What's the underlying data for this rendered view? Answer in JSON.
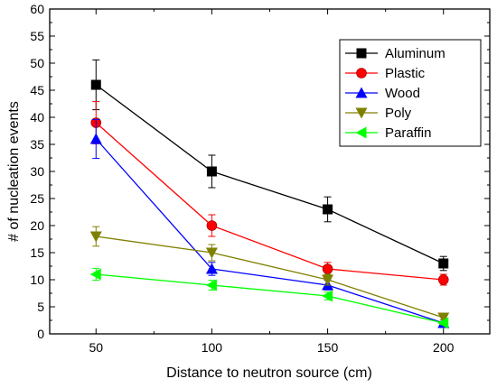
{
  "chart_data": {
    "type": "line",
    "xlabel": "Distance to neutron source (cm)",
    "ylabel": "# of nucleation events",
    "x": [
      50,
      100,
      150,
      200
    ],
    "xlim": [
      30,
      220
    ],
    "ylim": [
      0,
      60
    ],
    "xticks": [
      50,
      100,
      150,
      200
    ],
    "yticks": [
      0,
      5,
      10,
      15,
      20,
      25,
      30,
      35,
      40,
      45,
      50,
      55,
      60
    ],
    "grid": false,
    "legend_position": "top-right",
    "series": [
      {
        "name": "Aluminum",
        "color": "#000000",
        "marker": "square",
        "values": [
          46,
          30,
          23,
          13
        ],
        "errors": [
          4.6,
          3.0,
          2.3,
          1.3
        ]
      },
      {
        "name": "Plastic",
        "color": "#ff0000",
        "marker": "circle",
        "values": [
          39,
          20,
          12,
          10
        ],
        "errors": [
          3.9,
          2.0,
          1.2,
          1.0
        ]
      },
      {
        "name": "Wood",
        "color": "#0000ff",
        "marker": "triangle-up",
        "values": [
          36,
          12,
          9,
          2
        ],
        "errors": [
          3.6,
          1.2,
          0.9,
          0.3
        ]
      },
      {
        "name": "Poly",
        "color": "#808000",
        "marker": "triangle-down",
        "values": [
          18,
          15,
          10,
          3
        ],
        "errors": [
          1.8,
          1.5,
          1.0,
          0.4
        ]
      },
      {
        "name": "Paraffin",
        "color": "#00ff00",
        "marker": "triangle-left",
        "values": [
          11,
          9,
          7,
          2
        ],
        "errors": [
          1.1,
          0.9,
          0.7,
          0.3
        ]
      }
    ]
  }
}
